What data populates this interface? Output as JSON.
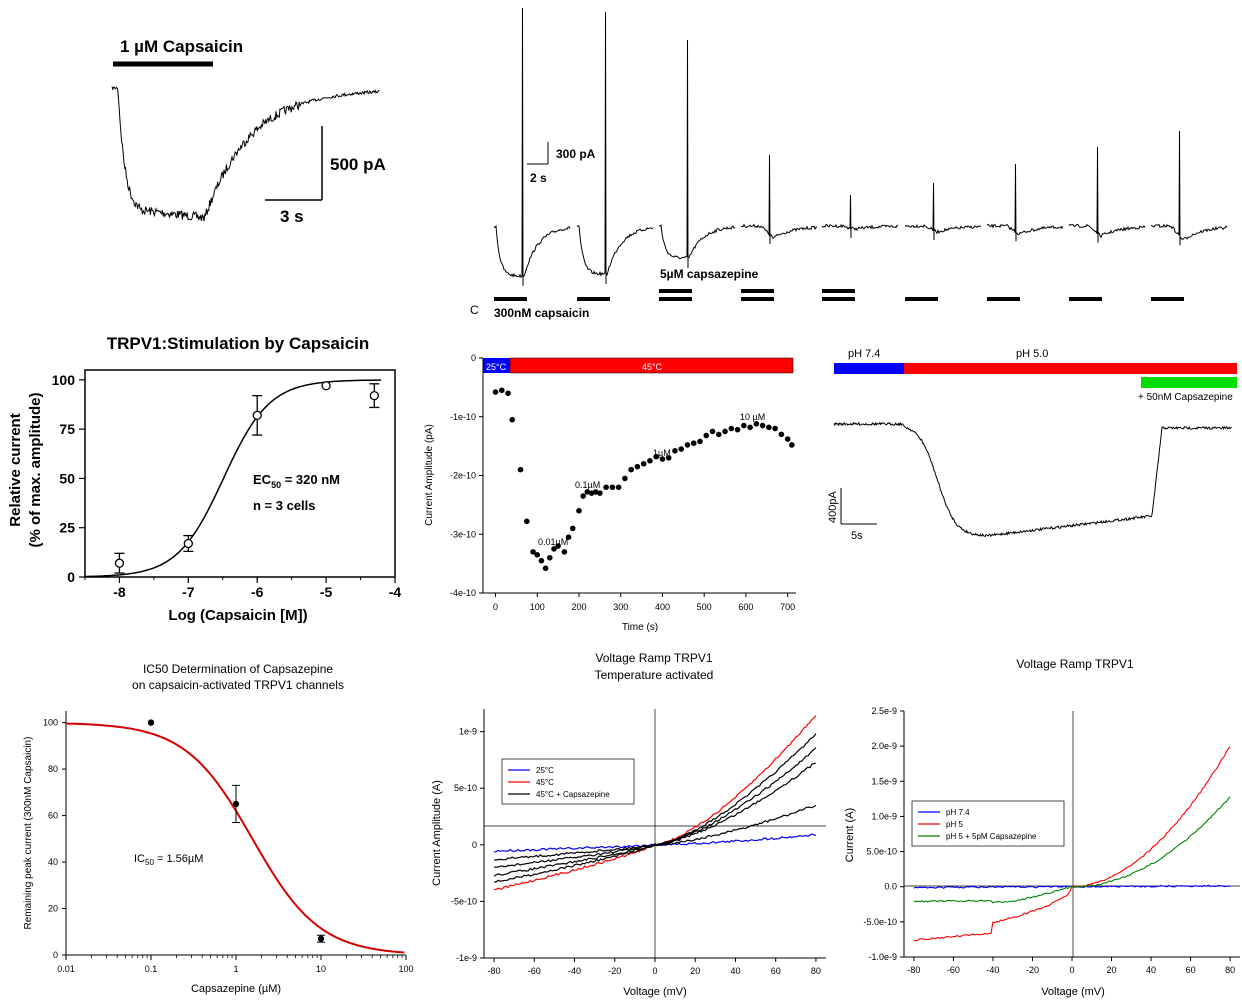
{
  "colors": {
    "blue": "#0000ff",
    "red": "#ff0000",
    "green": "#00cc00",
    "black": "#000000",
    "fitred": "#d40000",
    "darkgreen": "#008000"
  },
  "panels": {
    "p1": {
      "bar_label": "1 µM Capsaicin",
      "scale_y": "500 pA",
      "scale_x": "3 s"
    },
    "p2": {
      "scale_y": "300 pA",
      "scale_x": "2 s",
      "letter": "C",
      "caps_label": "300nM capsaicin",
      "cpz_label": "5µM capsazepine"
    },
    "p6": {
      "bar1": "pH 7.4",
      "bar2": "pH 5.0",
      "bar3": "+ 50nM Capsazepine",
      "scale_y": "400pA",
      "scale_x": "5s"
    }
  },
  "chart_data": [
    {
      "id": "dose-response-capsaicin",
      "type": "scatter",
      "title": "TRPV1:Stimulation by Capsaicin",
      "xlabel": "Log (Capsaicin [M])",
      "ylabel": "Relative current",
      "ylabel2": "(% of max. amplitude)",
      "xlim": [
        -8.5,
        -4
      ],
      "ylim": [
        0,
        105
      ],
      "xticks": [
        "-8",
        "-7",
        "-6",
        "-5",
        "-4"
      ],
      "yticks": [
        "0",
        "25",
        "50",
        "75",
        "100"
      ],
      "x": [
        -8,
        -7,
        -6,
        -5,
        -4.3
      ],
      "y": [
        7,
        17,
        82,
        97,
        92
      ],
      "err": [
        5,
        4,
        10,
        0,
        6
      ],
      "annotation_ec": "EC",
      "annotation_sub": "50",
      "annotation_val": " = 320 nM",
      "annotation_n": "n = 3 cells",
      "fit": {
        "log_ec50": -6.49,
        "hill": 1.3,
        "top": 100,
        "bottom": 0
      }
    },
    {
      "id": "time-course",
      "type": "scatter",
      "ylabel": "Current Amplitude (pA)",
      "xlabel": "Time (s)",
      "xlim": [
        -30,
        720
      ],
      "ylim": [
        -4e-10,
        0
      ],
      "xticks": [
        "0",
        "100",
        "200",
        "300",
        "400",
        "500",
        "600",
        "700"
      ],
      "yticks": [
        "0",
        "-1e-10",
        "-2e-10",
        "-3e-10",
        "-4e-10"
      ],
      "temp_bars": [
        "25°C",
        "45°C"
      ],
      "labels": [
        "0.01µM",
        "0.1µM",
        "1µM",
        "10 µM"
      ],
      "x": [
        0,
        15,
        30,
        40,
        60,
        75,
        90,
        100,
        110,
        120,
        130,
        140,
        150,
        165,
        175,
        185,
        200,
        210,
        220,
        230,
        240,
        250,
        265,
        280,
        295,
        310,
        325,
        340,
        355,
        370,
        385,
        400,
        415,
        430,
        445,
        460,
        475,
        490,
        505,
        520,
        535,
        550,
        565,
        580,
        595,
        610,
        625,
        640,
        655,
        670,
        685,
        700,
        710
      ],
      "y": [
        -0.58,
        -0.55,
        -0.6,
        -1.05,
        -1.9,
        -2.78,
        -3.3,
        -3.35,
        -3.45,
        -3.58,
        -3.4,
        -3.25,
        -3.2,
        -3.3,
        -3.05,
        -2.9,
        -2.6,
        -2.35,
        -2.28,
        -2.3,
        -2.28,
        -2.3,
        -2.2,
        -2.2,
        -2.2,
        -2.05,
        -1.9,
        -1.85,
        -1.8,
        -1.75,
        -1.68,
        -1.72,
        -1.7,
        -1.58,
        -1.55,
        -1.48,
        -1.45,
        -1.42,
        -1.32,
        -1.25,
        -1.3,
        -1.25,
        -1.2,
        -1.22,
        -1.15,
        -1.18,
        -1.12,
        -1.15,
        -1.18,
        -1.2,
        -1.3,
        -1.38,
        -1.48
      ]
    },
    {
      "id": "ic50-capsazepine",
      "type": "scatter",
      "title": "IC50 Determination of Capsazepine",
      "title2": "on capsaicin-activated TRPV1 channels",
      "xlabel": "Capsazepine (µM)",
      "ylabel": "Remaining peak current (300nM Capsaicin)",
      "xlim": [
        0.01,
        100
      ],
      "ylim": [
        0,
        105
      ],
      "xscale": "log",
      "xticks": [
        "0.01",
        "0.1",
        "1",
        "10",
        "100"
      ],
      "yticks": [
        "0",
        "20",
        "40",
        "60",
        "80",
        "100"
      ],
      "x": [
        0.1,
        1,
        10
      ],
      "y": [
        100,
        65,
        7
      ],
      "err": [
        0,
        8,
        1.5
      ],
      "annotation_ic": "IC",
      "annotation_sub": "50",
      "annotation_val": " = 1.56µM",
      "fit": {
        "ic50": 1.56,
        "hill": 1.1,
        "top": 100
      }
    },
    {
      "id": "iv-temperature",
      "type": "line",
      "title": "Voltage Ramp TRPV1",
      "title2": "Temperature activated",
      "xlabel": "Voltage (mV)",
      "ylabel": "Current Amplitude (A)",
      "xlim": [
        -85,
        85
      ],
      "ylim": [
        -1e-09,
        1.2e-09
      ],
      "xticks": [
        "-80",
        "-60",
        "-40",
        "-20",
        "0",
        "20",
        "40",
        "60",
        "80"
      ],
      "yticks": [
        "-1e-9",
        "-5e-10",
        "0",
        "5e-10",
        "1e-9"
      ],
      "legend": [
        "25°C",
        "45°C",
        "45°C + Capsazepine"
      ],
      "series": [
        {
          "name": "25°C",
          "color": "blue",
          "neg": -0.55,
          "pos": 0.9
        },
        {
          "name": "45°C",
          "color": "red",
          "neg": -4.0,
          "pos": 11.5
        },
        {
          "name": "45°C + Capsazepine",
          "color": "black",
          "neg": -3.3,
          "pos": 9.8
        },
        {
          "name": "45°C + Capsazepine",
          "color": "black",
          "neg": -2.7,
          "pos": 8.5
        },
        {
          "name": "45°C + Capsazepine",
          "color": "black",
          "neg": -2.0,
          "pos": 7.3
        },
        {
          "name": "45°C + Capsazepine",
          "color": "black",
          "neg": -1.3,
          "pos": 3.5
        }
      ]
    },
    {
      "id": "iv-ph",
      "type": "line",
      "title": "Voltage Ramp TRPV1",
      "xlabel": "Voltage (mV)",
      "ylabel": "Current (A)",
      "xlim": [
        -85,
        85
      ],
      "ylim": [
        -1e-09,
        2.5e-09
      ],
      "xticks": [
        "-80",
        "-60",
        "-40",
        "-20",
        "0",
        "20",
        "40",
        "60",
        "80"
      ],
      "yticks": [
        "-1.0e-9",
        "-5.0e-10",
        "0.0",
        "5.0e-10",
        "1.0e-9",
        "1.5e-9",
        "2.0e-9",
        "2.5e-9"
      ],
      "legend": [
        "pH 7.4",
        "pH 5",
        "pH 5 + 5pM Capsazepine"
      ],
      "series": [
        {
          "name": "pH 7.4",
          "color": "blue"
        },
        {
          "name": "pH 5",
          "color": "red"
        },
        {
          "name": "pH 5 + 5pM Capsazepine",
          "color": "darkgreen"
        }
      ]
    }
  ]
}
